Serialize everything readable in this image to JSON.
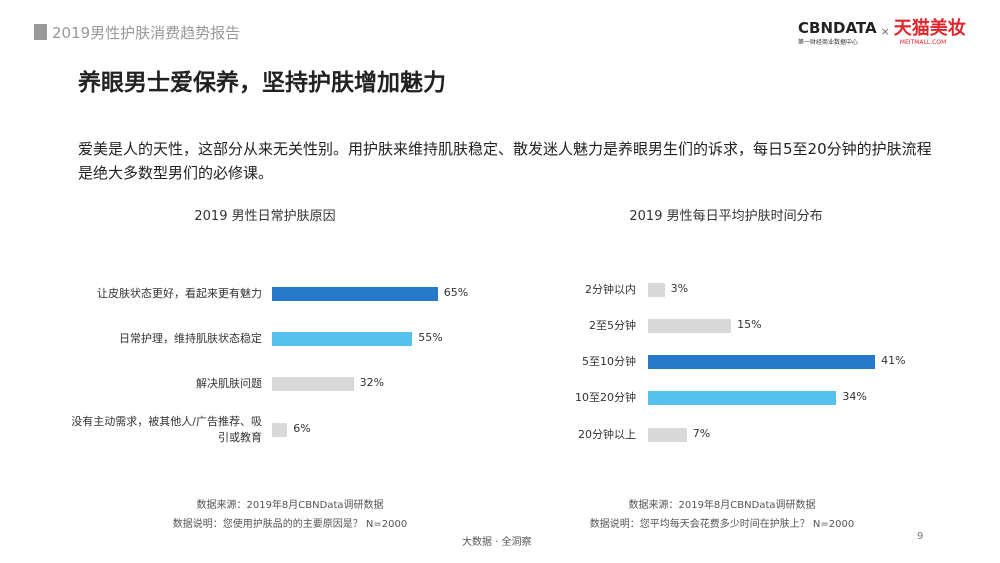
{
  "header": {
    "report": "2019男性护肤消费趋势报告",
    "logo_left": "CBNDATA",
    "logo_left_sub": "第一财经商业数据中心",
    "logo_sep": "×",
    "logo_right": "天猫美妆",
    "logo_right_sub": "MEITMALL.COM"
  },
  "title": "养眼男士爱保养，坚持护肤增加魅力",
  "description": "爱美是人的天性，这部分从来无关性别。用护肤来维持肌肤稳定、散发迷人魅力是养眼男生们的诉求，每日5至20分钟的护肤流程是绝大多数型男们的必修课。",
  "colors": {
    "dark_blue": "#2778c9",
    "light_blue": "#56c1ec",
    "gray": "#d9d9d9"
  },
  "chart_data": [
    {
      "type": "bar",
      "orientation": "horizontal",
      "title": "2019 男性日常护肤原因",
      "categories": [
        "让皮肤状态更好，看起来更有魅力",
        "日常护理，维持肌肤状态稳定",
        "解决肌肤问题",
        "没有主动需求，被其他人/广告推荐、吸引或教育"
      ],
      "values": [
        65,
        55,
        32,
        6
      ],
      "labels": [
        "65%",
        "55%",
        "32%",
        "6%"
      ],
      "bar_colors": [
        "#2778c9",
        "#56c1ec",
        "#d9d9d9",
        "#d9d9d9"
      ],
      "xlim": [
        0,
        100
      ],
      "grid": false,
      "source": "数据来源：2019年8月CBNData调研数据",
      "note": "数据说明：您使用护肤品的的主要原因是？ N=2000"
    },
    {
      "type": "bar",
      "orientation": "horizontal",
      "title": "2019 男性每日平均护肤时间分布",
      "categories": [
        "2分钟以内",
        "2至5分钟",
        "5至10分钟",
        "10至20分钟",
        "20分钟以上"
      ],
      "values": [
        3,
        15,
        41,
        34,
        7
      ],
      "labels": [
        "3%",
        "15%",
        "41%",
        "34%",
        "7%"
      ],
      "bar_colors": [
        "#d9d9d9",
        "#d9d9d9",
        "#2778c9",
        "#56c1ec",
        "#d9d9d9"
      ],
      "xlim": [
        0,
        100
      ],
      "grid": false,
      "source": "数据来源：2019年8月CBNData调研数据",
      "note": "数据说明：您平均每天会花费多少时间在护肤上？ N=2000"
    }
  ],
  "footer": {
    "slogan": "大数据 · 全洞察",
    "page": "9"
  }
}
